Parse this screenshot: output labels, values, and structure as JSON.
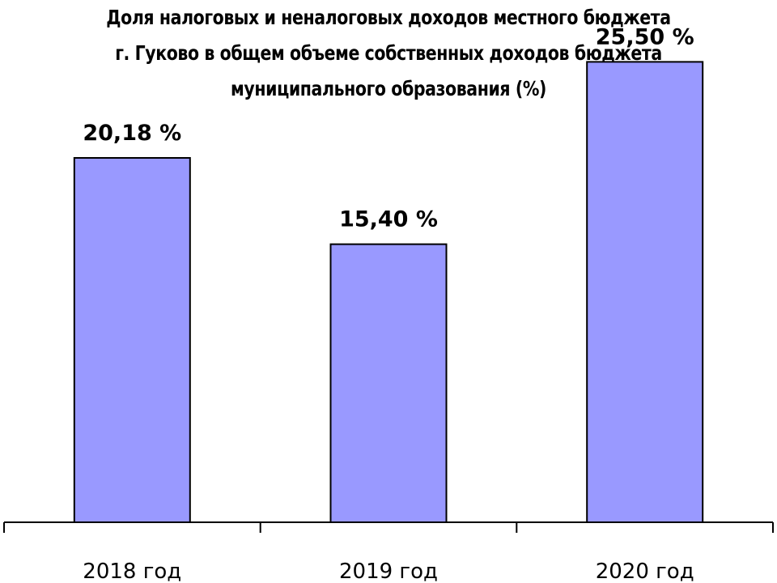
{
  "chart_data": {
    "type": "bar",
    "title_lines": [
      "Доля налоговых и неналоговых доходов местного бюджета",
      "г. Гуково в общем объеме собственных доходов бюджета",
      "муниципального образования (%)"
    ],
    "categories": [
      "2018 год",
      "2019 год",
      "2020 год"
    ],
    "values": [
      20.18,
      15.4,
      25.5
    ],
    "data_labels": [
      "20,18 %",
      "15,40 %",
      "25,50 %"
    ],
    "ylim": [
      0,
      32
    ],
    "grid": false,
    "legend": "none",
    "bar_color": "#9999ff",
    "axis_color": "#000000"
  }
}
